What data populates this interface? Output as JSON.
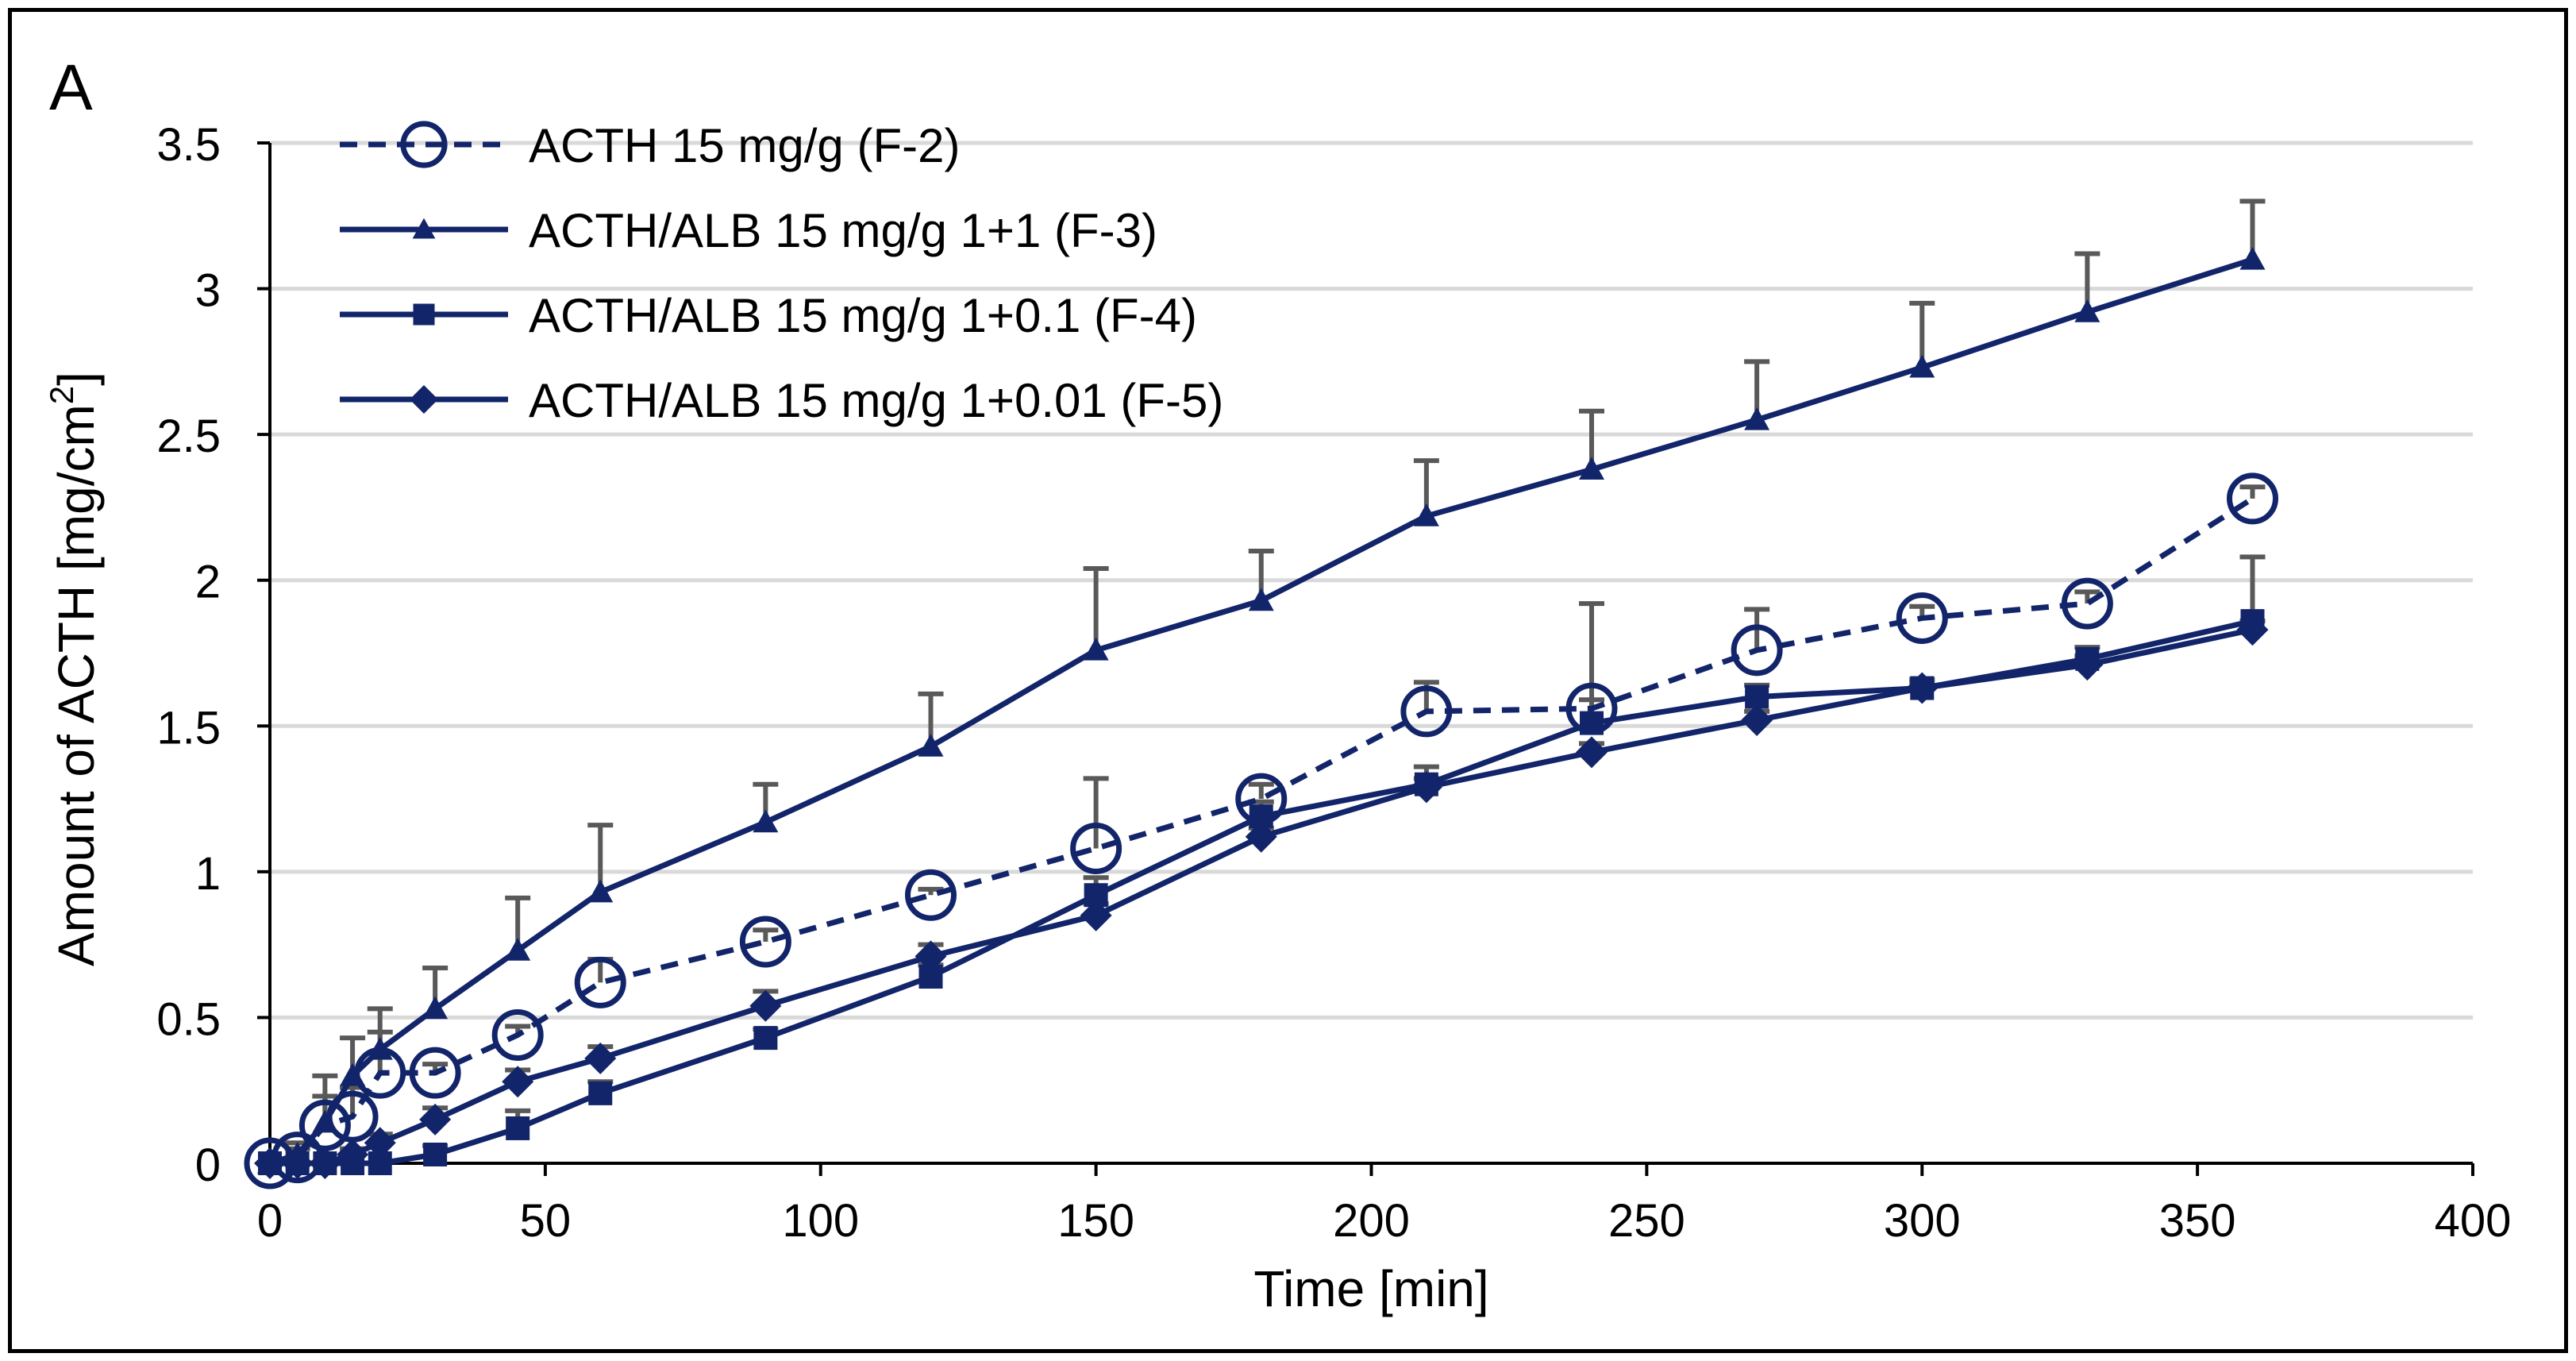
{
  "panel_label": "A",
  "colors": {
    "series": "#13256a",
    "error_bar": "#595959",
    "grid": "#d9d9d9",
    "axis": "#000000"
  },
  "chart_data": {
    "type": "line",
    "title": "",
    "xlabel": "Time [min]",
    "ylabel_main": "Amount of ACTH [mg/cm",
    "ylabel_sup": "2",
    "ylabel_tail": "]",
    "xlim": [
      0,
      400
    ],
    "ylim": [
      0,
      3.5
    ],
    "xticks": [
      0,
      50,
      100,
      150,
      200,
      250,
      300,
      350,
      400
    ],
    "yticks": [
      0,
      0.5,
      1,
      1.5,
      2,
      2.5,
      3,
      3.5
    ],
    "grid": "horizontal",
    "legend_position": "top-left",
    "error_bars": "upper",
    "series": [
      {
        "name": "ACTH 15 mg/g (F-2)",
        "marker": "open-circle",
        "line": "dashed",
        "x": [
          0,
          5,
          10,
          15,
          20,
          30,
          45,
          60,
          90,
          120,
          150,
          180,
          210,
          240,
          270,
          300,
          330,
          360
        ],
        "y": [
          0,
          0.02,
          0.13,
          0.16,
          0.31,
          0.31,
          0.44,
          0.62,
          0.76,
          0.92,
          1.08,
          1.25,
          1.55,
          1.56,
          1.76,
          1.87,
          1.92,
          2.28
        ],
        "err": [
          0,
          0.03,
          0.1,
          0.1,
          0.14,
          0.03,
          0.03,
          0.08,
          0.04,
          0.02,
          0.24,
          0.05,
          0.1,
          0.36,
          0.14,
          0.04,
          0.04,
          0.04
        ]
      },
      {
        "name": "ACTH/ALB 15 mg/g 1+1 (F-3)",
        "marker": "triangle",
        "line": "solid",
        "x": [
          0,
          5,
          10,
          15,
          20,
          30,
          45,
          60,
          90,
          120,
          150,
          180,
          210,
          240,
          270,
          300,
          330,
          360
        ],
        "y": [
          0,
          0.03,
          0.14,
          0.3,
          0.39,
          0.53,
          0.73,
          0.93,
          1.17,
          1.43,
          1.76,
          1.93,
          2.22,
          2.38,
          2.55,
          2.73,
          2.92,
          3.1
        ],
        "err": [
          0,
          0.04,
          0.16,
          0.13,
          0.14,
          0.14,
          0.18,
          0.23,
          0.13,
          0.18,
          0.28,
          0.17,
          0.19,
          0.2,
          0.2,
          0.22,
          0.2,
          0.2
        ]
      },
      {
        "name": "ACTH/ALB 15 mg/g 1+0.1 (F-4)",
        "marker": "square",
        "line": "solid",
        "x": [
          0,
          5,
          10,
          15,
          20,
          30,
          45,
          60,
          90,
          120,
          150,
          180,
          210,
          240,
          270,
          300,
          330,
          360
        ],
        "y": [
          0,
          0,
          0,
          0,
          0,
          0.03,
          0.12,
          0.24,
          0.43,
          0.64,
          0.92,
          1.19,
          1.3,
          1.51,
          1.6,
          1.63,
          1.73,
          1.86
        ],
        "err": [
          0,
          0,
          0,
          0,
          0,
          0.03,
          0.06,
          0.04,
          0.03,
          0.04,
          0.06,
          0.05,
          0.06,
          0.08,
          0.04,
          0.03,
          0.04,
          0.22
        ]
      },
      {
        "name": "ACTH/ALB 15 mg/g 1+0.01 (F-5)",
        "marker": "diamond",
        "line": "solid",
        "x": [
          0,
          5,
          10,
          15,
          20,
          30,
          45,
          60,
          90,
          120,
          150,
          180,
          210,
          240,
          270,
          300,
          330,
          360
        ],
        "y": [
          0,
          0,
          0,
          0.03,
          0.07,
          0.15,
          0.28,
          0.36,
          0.54,
          0.71,
          0.85,
          1.12,
          1.29,
          1.41,
          1.52,
          1.63,
          1.71,
          1.83
        ],
        "err": [
          0,
          0,
          0,
          0.02,
          0.03,
          0.04,
          0.04,
          0.04,
          0.05,
          0.04,
          0.04,
          0.03,
          0.03,
          0.03,
          0.03,
          0.02,
          0.03,
          0.03
        ]
      }
    ]
  }
}
